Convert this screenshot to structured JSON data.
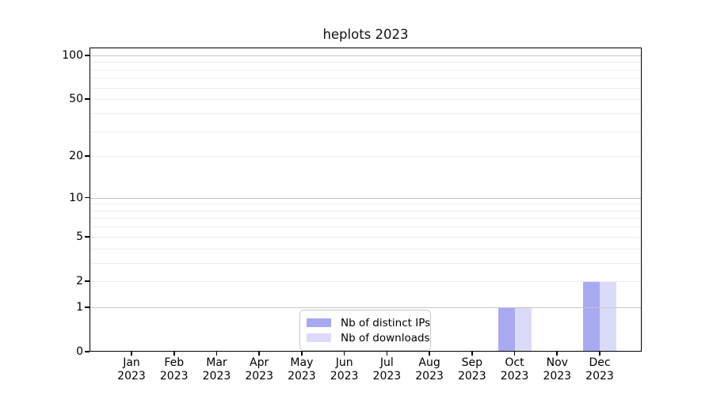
{
  "chart_data": {
    "type": "bar",
    "title": "heplots 2023",
    "categories": [
      "Jan 2023",
      "Feb 2023",
      "Mar 2023",
      "Apr 2023",
      "May 2023",
      "Jun 2023",
      "Jul 2023",
      "Aug 2023",
      "Sep 2023",
      "Oct 2023",
      "Nov 2023",
      "Dec 2023"
    ],
    "series": [
      {
        "name": "Nb of distinct IPs",
        "color": "#a9a9f2",
        "values": [
          0,
          0,
          0,
          0,
          0,
          0,
          0,
          0,
          0,
          1,
          0,
          2
        ]
      },
      {
        "name": "Nb of downloads",
        "color": "#dbdbf9",
        "values": [
          0,
          0,
          0,
          0,
          0,
          0,
          0,
          0,
          0,
          1,
          0,
          2
        ]
      }
    ],
    "xlabel": "",
    "ylabel": "",
    "yaxis": {
      "scale": "log1p",
      "tick_labels": [
        0,
        1,
        2,
        5,
        10,
        20,
        50,
        100
      ],
      "major_gridlines": [
        1,
        10,
        100
      ],
      "minor_gridlines": [
        2,
        3,
        4,
        5,
        6,
        7,
        8,
        9,
        20,
        30,
        40,
        50,
        60,
        70,
        80,
        90
      ],
      "ylim": [
        0,
        113
      ]
    },
    "grid": "on",
    "legend_position": "lower center inside"
  },
  "colors": {
    "background": "#ffffff",
    "axis": "#000000",
    "major_gridline": "#c6c6c6",
    "minor_gridline": "#ececec",
    "bar_distinct_ips": "#a9a9f2",
    "bar_downloads": "#dbdbf9",
    "legend_border": "#c9c9c9"
  }
}
